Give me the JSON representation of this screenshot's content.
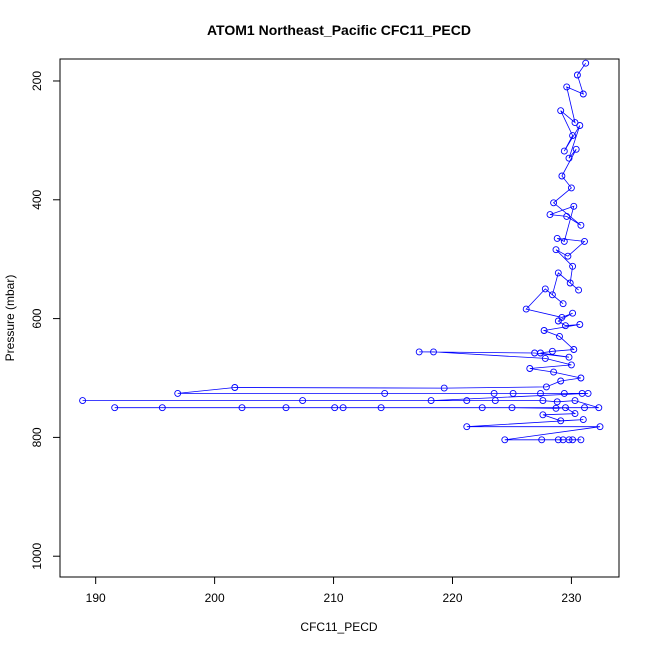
{
  "chart_data": {
    "type": "scatter",
    "title": "ATOM1 Northeast_Pacific CFC11_PECD",
    "xlabel": "CFC11_PECD",
    "ylabel": "Pressure (mbar)",
    "xlim": [
      187,
      234
    ],
    "ylim": [
      1035,
      163
    ],
    "y_reversed": true,
    "x_ticks": [
      190,
      200,
      210,
      220,
      230
    ],
    "y_ticks": [
      200,
      400,
      600,
      800,
      1000
    ],
    "x_tick_labels": [
      "190",
      "200",
      "210",
      "220",
      "230"
    ],
    "y_tick_labels": [
      "200",
      "400",
      "600",
      "800",
      "1000"
    ],
    "grid": false,
    "legend": "none",
    "series_color": "#0000ff",
    "marker": "open-circle",
    "connected": true,
    "points": [
      [
        231.2,
        170
      ],
      [
        230.5,
        190
      ],
      [
        231.0,
        222
      ],
      [
        229.6,
        210
      ],
      [
        230.3,
        270
      ],
      [
        229.1,
        250
      ],
      [
        230.1,
        292
      ],
      [
        229.4,
        318
      ],
      [
        230.7,
        275
      ],
      [
        229.8,
        330
      ],
      [
        230.4,
        315
      ],
      [
        229.2,
        360
      ],
      [
        230.0,
        380
      ],
      [
        228.5,
        405
      ],
      [
        230.8,
        443
      ],
      [
        229.6,
        428
      ],
      [
        228.2,
        425
      ],
      [
        230.2,
        411
      ],
      [
        229.4,
        470
      ],
      [
        228.8,
        465
      ],
      [
        231.1,
        470
      ],
      [
        229.7,
        495
      ],
      [
        228.7,
        484
      ],
      [
        230.1,
        512
      ],
      [
        229.9,
        540
      ],
      [
        230.6,
        552
      ],
      [
        228.9,
        523
      ],
      [
        228.4,
        560
      ],
      [
        229.3,
        575
      ],
      [
        227.8,
        550
      ],
      [
        226.2,
        584
      ],
      [
        229.2,
        598
      ],
      [
        230.1,
        591
      ],
      [
        228.9,
        604
      ],
      [
        229.5,
        612
      ],
      [
        230.7,
        610
      ],
      [
        227.7,
        620
      ],
      [
        229.0,
        630
      ],
      [
        230.2,
        652
      ],
      [
        228.4,
        655
      ],
      [
        227.4,
        658
      ],
      [
        229.8,
        665
      ],
      [
        226.9,
        658
      ],
      [
        217.2,
        656
      ],
      [
        218.4,
        656
      ],
      [
        227.8,
        667
      ],
      [
        230.0,
        678
      ],
      [
        226.5,
        684
      ],
      [
        228.5,
        690
      ],
      [
        230.8,
        700
      ],
      [
        229.1,
        705
      ],
      [
        227.9,
        715
      ],
      [
        219.3,
        717
      ],
      [
        201.7,
        716
      ],
      [
        196.9,
        726
      ],
      [
        214.3,
        726
      ],
      [
        223.5,
        726
      ],
      [
        225.1,
        726
      ],
      [
        227.4,
        726
      ],
      [
        229.4,
        726
      ],
      [
        230.9,
        726
      ],
      [
        231.4,
        726
      ],
      [
        218.2,
        738
      ],
      [
        207.4,
        738
      ],
      [
        188.9,
        738
      ],
      [
        221.2,
        738
      ],
      [
        223.6,
        738
      ],
      [
        227.6,
        738
      ],
      [
        228.8,
        740
      ],
      [
        230.3,
        738
      ],
      [
        232.3,
        750
      ],
      [
        231.1,
        750
      ],
      [
        191.6,
        750
      ],
      [
        195.6,
        750
      ],
      [
        202.3,
        750
      ],
      [
        206.0,
        750
      ],
      [
        210.1,
        750
      ],
      [
        210.8,
        750
      ],
      [
        214.0,
        750
      ],
      [
        222.5,
        750
      ],
      [
        225.0,
        750
      ],
      [
        228.7,
        751
      ],
      [
        229.5,
        750
      ],
      [
        230.3,
        760
      ],
      [
        227.6,
        762
      ],
      [
        229.1,
        772
      ],
      [
        231.0,
        770
      ],
      [
        221.2,
        782
      ],
      [
        232.4,
        782
      ],
      [
        224.4,
        804
      ],
      [
        227.5,
        804
      ],
      [
        228.9,
        804
      ],
      [
        229.3,
        804
      ],
      [
        229.8,
        804
      ],
      [
        230.1,
        804
      ],
      [
        230.8,
        804
      ]
    ]
  }
}
